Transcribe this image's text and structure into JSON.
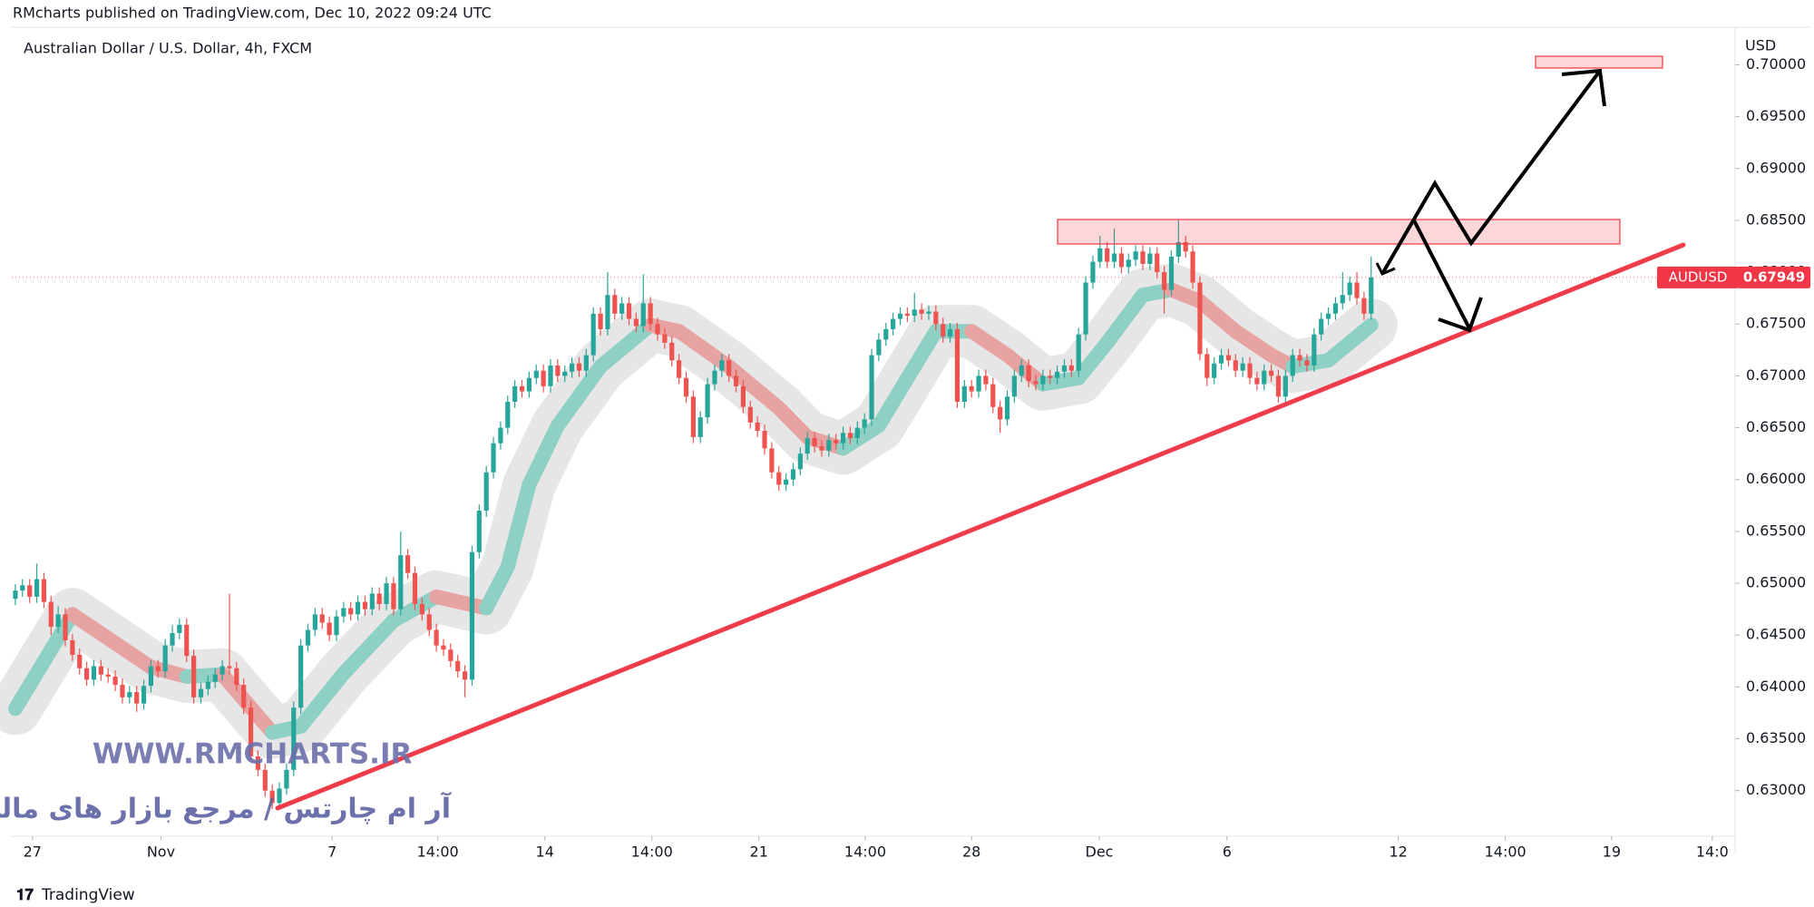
{
  "header": "RMcharts published on TradingView.com, Dec 10, 2022 09:24 UTC",
  "footer": "TradingView",
  "chart_data": {
    "type": "candlestick",
    "title": "Australian Dollar / U.S. Dollar, 4h, FXCM",
    "currency": "USD",
    "symbol": "AUDUSD",
    "watermark": "WWW.RMCHARTS.IR",
    "watermark_fa": "آر ام چارتس / مرجع بازار های مالی",
    "up_color": "#26a69a",
    "down_color": "#ef5350",
    "ribbon_up_color": "#8fd0c4",
    "ribbon_down_color": "#e7a2a2",
    "envelope_color": "#e6e6e6",
    "xlim": [
      -0.5,
      241
    ],
    "xticks": [
      {
        "value": 2.4,
        "label": "27"
      },
      {
        "value": 20.4,
        "label": "Nov"
      },
      {
        "value": 44.4,
        "label": "7"
      },
      {
        "value": 59.2,
        "label": "14:00"
      },
      {
        "value": 74.2,
        "label": "14"
      },
      {
        "value": 89.2,
        "label": "14:00"
      },
      {
        "value": 104.2,
        "label": "21"
      },
      {
        "value": 119.1,
        "label": "14:00"
      },
      {
        "value": 134,
        "label": "28"
      },
      {
        "value": 151.9,
        "label": "Dec"
      },
      {
        "value": 169.8,
        "label": "6"
      },
      {
        "value": 193.8,
        "label": "12"
      },
      {
        "value": 208.8,
        "label": "14:00"
      },
      {
        "value": 223.7,
        "label": "19"
      },
      {
        "value": 237.8,
        "label": "14:0"
      }
    ],
    "ylim": [
      0.6256,
      0.7031
    ],
    "yticks": [
      {
        "value": 0.63,
        "label": "0.63000"
      },
      {
        "value": 0.635,
        "label": "0.63500"
      },
      {
        "value": 0.64,
        "label": "0.64000"
      },
      {
        "value": 0.645,
        "label": "0.64500"
      },
      {
        "value": 0.65,
        "label": "0.65000"
      },
      {
        "value": 0.655,
        "label": "0.65500"
      },
      {
        "value": 0.66,
        "label": "0.66000"
      },
      {
        "value": 0.665,
        "label": "0.66500"
      },
      {
        "value": 0.67,
        "label": "0.67000"
      },
      {
        "value": 0.675,
        "label": "0.67500"
      },
      {
        "value": 0.68,
        "label": "0.68000"
      },
      {
        "value": 0.685,
        "label": "0.68500"
      },
      {
        "value": 0.69,
        "label": "0.69000"
      },
      {
        "value": 0.695,
        "label": "0.69500"
      },
      {
        "value": 0.7,
        "label": "0.70000"
      }
    ],
    "ohlc": [
      [
        0.6485,
        0.6499,
        0.6479,
        0.6493
      ],
      [
        0.6493,
        0.6504,
        0.6487,
        0.6498
      ],
      [
        0.6498,
        0.6504,
        0.6481,
        0.6487
      ],
      [
        0.6487,
        0.6519,
        0.6481,
        0.6504
      ],
      [
        0.6504,
        0.651,
        0.6476,
        0.6482
      ],
      [
        0.6482,
        0.6488,
        0.645,
        0.6458
      ],
      [
        0.6458,
        0.6478,
        0.6452,
        0.647
      ],
      [
        0.647,
        0.6476,
        0.6439,
        0.6445
      ],
      [
        0.6445,
        0.6451,
        0.6425,
        0.6431
      ],
      [
        0.6431,
        0.6437,
        0.6412,
        0.6418
      ],
      [
        0.6418,
        0.6424,
        0.6401,
        0.6407
      ],
      [
        0.6407,
        0.6426,
        0.6401,
        0.642
      ],
      [
        0.642,
        0.6426,
        0.6406,
        0.6412
      ],
      [
        0.6412,
        0.6418,
        0.6404,
        0.641
      ],
      [
        0.641,
        0.6416,
        0.6396,
        0.6402
      ],
      [
        0.6402,
        0.6408,
        0.6384,
        0.639
      ],
      [
        0.639,
        0.6401,
        0.6384,
        0.6395
      ],
      [
        0.6395,
        0.6401,
        0.6376,
        0.6384
      ],
      [
        0.6384,
        0.6407,
        0.6378,
        0.6401
      ],
      [
        0.6401,
        0.6426,
        0.6395,
        0.642
      ],
      [
        0.642,
        0.6426,
        0.6409,
        0.6415
      ],
      [
        0.6415,
        0.6446,
        0.6409,
        0.644
      ],
      [
        0.644,
        0.646,
        0.6434,
        0.6452
      ],
      [
        0.6452,
        0.6466,
        0.6446,
        0.646
      ],
      [
        0.646,
        0.6466,
        0.6424,
        0.643
      ],
      [
        0.643,
        0.6436,
        0.6384,
        0.639
      ],
      [
        0.639,
        0.6404,
        0.6384,
        0.6398
      ],
      [
        0.6398,
        0.6411,
        0.6392,
        0.6405
      ],
      [
        0.6405,
        0.6418,
        0.6399,
        0.6412
      ],
      [
        0.6412,
        0.6426,
        0.6406,
        0.642
      ],
      [
        0.642,
        0.649,
        0.6412,
        0.6418
      ],
      [
        0.6418,
        0.6424,
        0.6396,
        0.6402
      ],
      [
        0.6402,
        0.6408,
        0.6374,
        0.638
      ],
      [
        0.638,
        0.6386,
        0.6327,
        0.6333
      ],
      [
        0.6333,
        0.6339,
        0.6314,
        0.632
      ],
      [
        0.632,
        0.6326,
        0.6294,
        0.63
      ],
      [
        0.63,
        0.6306,
        0.6282,
        0.6288
      ],
      [
        0.6288,
        0.6308,
        0.6282,
        0.6302
      ],
      [
        0.6302,
        0.6326,
        0.6296,
        0.632
      ],
      [
        0.632,
        0.6386,
        0.6314,
        0.638
      ],
      [
        0.638,
        0.6446,
        0.6374,
        0.644
      ],
      [
        0.644,
        0.6461,
        0.6434,
        0.6455
      ],
      [
        0.6455,
        0.6476,
        0.6449,
        0.647
      ],
      [
        0.647,
        0.6476,
        0.6456,
        0.6462
      ],
      [
        0.6462,
        0.6468,
        0.6444,
        0.645
      ],
      [
        0.645,
        0.6474,
        0.6444,
        0.6468
      ],
      [
        0.6468,
        0.6482,
        0.6462,
        0.6476
      ],
      [
        0.6476,
        0.6482,
        0.6464,
        0.647
      ],
      [
        0.647,
        0.6488,
        0.6464,
        0.6482
      ],
      [
        0.6482,
        0.6488,
        0.6469,
        0.6475
      ],
      [
        0.6475,
        0.6496,
        0.6469,
        0.649
      ],
      [
        0.649,
        0.6496,
        0.6474,
        0.648
      ],
      [
        0.648,
        0.6506,
        0.6474,
        0.65
      ],
      [
        0.65,
        0.6506,
        0.6469,
        0.6475
      ],
      [
        0.6475,
        0.655,
        0.6469,
        0.6527
      ],
      [
        0.6527,
        0.6533,
        0.6504,
        0.651
      ],
      [
        0.651,
        0.6516,
        0.6474,
        0.648
      ],
      [
        0.648,
        0.6486,
        0.6464,
        0.647
      ],
      [
        0.647,
        0.6476,
        0.6449,
        0.6455
      ],
      [
        0.6455,
        0.6461,
        0.6434,
        0.644
      ],
      [
        0.644,
        0.6446,
        0.643,
        0.6436
      ],
      [
        0.6436,
        0.6442,
        0.6419,
        0.6425
      ],
      [
        0.6425,
        0.6431,
        0.6409,
        0.6415
      ],
      [
        0.6415,
        0.6421,
        0.639,
        0.6407
      ],
      [
        0.6407,
        0.6536,
        0.6401,
        0.653
      ],
      [
        0.653,
        0.6576,
        0.6524,
        0.657
      ],
      [
        0.657,
        0.6613,
        0.6564,
        0.6607
      ],
      [
        0.6607,
        0.6641,
        0.6601,
        0.6635
      ],
      [
        0.6635,
        0.6656,
        0.6629,
        0.665
      ],
      [
        0.665,
        0.6681,
        0.6644,
        0.6675
      ],
      [
        0.6675,
        0.6696,
        0.6669,
        0.669
      ],
      [
        0.669,
        0.6696,
        0.6679,
        0.6685
      ],
      [
        0.6685,
        0.6704,
        0.6679,
        0.6698
      ],
      [
        0.6698,
        0.6711,
        0.6692,
        0.6705
      ],
      [
        0.6705,
        0.6711,
        0.6684,
        0.669
      ],
      [
        0.669,
        0.6716,
        0.6684,
        0.671
      ],
      [
        0.671,
        0.6716,
        0.6694,
        0.67
      ],
      [
        0.67,
        0.671,
        0.6694,
        0.6704
      ],
      [
        0.6704,
        0.6718,
        0.6698,
        0.6712
      ],
      [
        0.6712,
        0.6718,
        0.6699,
        0.6705
      ],
      [
        0.6705,
        0.6726,
        0.6699,
        0.672
      ],
      [
        0.672,
        0.6766,
        0.6714,
        0.676
      ],
      [
        0.676,
        0.6766,
        0.6739,
        0.6745
      ],
      [
        0.6745,
        0.68,
        0.6739,
        0.6778
      ],
      [
        0.6778,
        0.6784,
        0.6754,
        0.676
      ],
      [
        0.676,
        0.6776,
        0.6754,
        0.677
      ],
      [
        0.677,
        0.6776,
        0.6749,
        0.6755
      ],
      [
        0.6755,
        0.6761,
        0.6742,
        0.6748
      ],
      [
        0.6748,
        0.6798,
        0.6742,
        0.677
      ],
      [
        0.677,
        0.6776,
        0.6744,
        0.675
      ],
      [
        0.675,
        0.6756,
        0.6734,
        0.674
      ],
      [
        0.674,
        0.6746,
        0.6726,
        0.6732
      ],
      [
        0.6732,
        0.6738,
        0.6709,
        0.6715
      ],
      [
        0.6715,
        0.6721,
        0.6692,
        0.6698
      ],
      [
        0.6698,
        0.6704,
        0.6674,
        0.668
      ],
      [
        0.668,
        0.6686,
        0.6635,
        0.6641
      ],
      [
        0.6641,
        0.6666,
        0.6635,
        0.666
      ],
      [
        0.666,
        0.6698,
        0.6654,
        0.6692
      ],
      [
        0.6692,
        0.6711,
        0.6686,
        0.6705
      ],
      [
        0.6705,
        0.6721,
        0.6699,
        0.6715
      ],
      [
        0.6715,
        0.6721,
        0.6694,
        0.67
      ],
      [
        0.67,
        0.6706,
        0.6684,
        0.669
      ],
      [
        0.669,
        0.6696,
        0.6664,
        0.667
      ],
      [
        0.667,
        0.6676,
        0.6649,
        0.6655
      ],
      [
        0.6655,
        0.6661,
        0.6641,
        0.6647
      ],
      [
        0.6647,
        0.6653,
        0.6624,
        0.663
      ],
      [
        0.663,
        0.6636,
        0.6601,
        0.6607
      ],
      [
        0.6607,
        0.6613,
        0.6589,
        0.6595
      ],
      [
        0.6595,
        0.6606,
        0.6589,
        0.66
      ],
      [
        0.66,
        0.6616,
        0.6594,
        0.661
      ],
      [
        0.661,
        0.6631,
        0.6604,
        0.6625
      ],
      [
        0.6625,
        0.6646,
        0.6619,
        0.664
      ],
      [
        0.664,
        0.6646,
        0.6626,
        0.6632
      ],
      [
        0.6632,
        0.6638,
        0.6622,
        0.6628
      ],
      [
        0.6628,
        0.6644,
        0.6622,
        0.6638
      ],
      [
        0.6638,
        0.6644,
        0.6629,
        0.6635
      ],
      [
        0.6635,
        0.6651,
        0.6629,
        0.6645
      ],
      [
        0.6645,
        0.6651,
        0.6634,
        0.664
      ],
      [
        0.664,
        0.6656,
        0.6634,
        0.665
      ],
      [
        0.665,
        0.6664,
        0.6644,
        0.6658
      ],
      [
        0.6658,
        0.6726,
        0.6652,
        0.672
      ],
      [
        0.672,
        0.6741,
        0.6714,
        0.6735
      ],
      [
        0.6735,
        0.6751,
        0.6729,
        0.6745
      ],
      [
        0.6745,
        0.6761,
        0.6739,
        0.6755
      ],
      [
        0.6755,
        0.6766,
        0.6749,
        0.676
      ],
      [
        0.676,
        0.6766,
        0.6752,
        0.6758
      ],
      [
        0.6758,
        0.678,
        0.6752,
        0.6764
      ],
      [
        0.6764,
        0.677,
        0.6754,
        0.676
      ],
      [
        0.676,
        0.6768,
        0.6754,
        0.6762
      ],
      [
        0.6762,
        0.6768,
        0.6744,
        0.675
      ],
      [
        0.675,
        0.6756,
        0.6732,
        0.6738
      ],
      [
        0.6738,
        0.6751,
        0.6732,
        0.6745
      ],
      [
        0.6745,
        0.6751,
        0.6669,
        0.6675
      ],
      [
        0.6675,
        0.6696,
        0.6669,
        0.669
      ],
      [
        0.669,
        0.6696,
        0.6679,
        0.6685
      ],
      [
        0.6685,
        0.6706,
        0.6679,
        0.67
      ],
      [
        0.67,
        0.6706,
        0.6686,
        0.6692
      ],
      [
        0.6692,
        0.6698,
        0.6664,
        0.667
      ],
      [
        0.667,
        0.6676,
        0.6645,
        0.6658
      ],
      [
        0.6658,
        0.6686,
        0.6652,
        0.668
      ],
      [
        0.668,
        0.6706,
        0.6674,
        0.67
      ],
      [
        0.67,
        0.6716,
        0.6694,
        0.671
      ],
      [
        0.671,
        0.6716,
        0.6689,
        0.6695
      ],
      [
        0.6695,
        0.6701,
        0.6686,
        0.6692
      ],
      [
        0.6692,
        0.6706,
        0.6686,
        0.67
      ],
      [
        0.67,
        0.6706,
        0.6692,
        0.6698
      ],
      [
        0.6698,
        0.671,
        0.6692,
        0.6704
      ],
      [
        0.6704,
        0.6716,
        0.6698,
        0.671
      ],
      [
        0.671,
        0.6716,
        0.6699,
        0.6705
      ],
      [
        0.6705,
        0.6746,
        0.6699,
        0.674
      ],
      [
        0.674,
        0.6796,
        0.6734,
        0.679
      ],
      [
        0.679,
        0.6816,
        0.6784,
        0.681
      ],
      [
        0.681,
        0.6835,
        0.6804,
        0.6823
      ],
      [
        0.6823,
        0.6829,
        0.6804,
        0.681
      ],
      [
        0.681,
        0.6842,
        0.6804,
        0.6818
      ],
      [
        0.6818,
        0.6824,
        0.6799,
        0.6805
      ],
      [
        0.6805,
        0.6818,
        0.6799,
        0.6812
      ],
      [
        0.6812,
        0.6826,
        0.6806,
        0.682
      ],
      [
        0.682,
        0.6826,
        0.6802,
        0.6808
      ],
      [
        0.6808,
        0.6824,
        0.6802,
        0.6818
      ],
      [
        0.6818,
        0.6824,
        0.6794,
        0.68
      ],
      [
        0.68,
        0.6806,
        0.676,
        0.6783
      ],
      [
        0.6783,
        0.6821,
        0.6777,
        0.6815
      ],
      [
        0.6815,
        0.685,
        0.6809,
        0.6829
      ],
      [
        0.6829,
        0.6835,
        0.6814,
        0.682
      ],
      [
        0.682,
        0.6826,
        0.6784,
        0.679
      ],
      [
        0.679,
        0.6796,
        0.6715,
        0.6721
      ],
      [
        0.6721,
        0.6727,
        0.669,
        0.6698
      ],
      [
        0.6698,
        0.6718,
        0.6692,
        0.6712
      ],
      [
        0.6712,
        0.6726,
        0.6706,
        0.672
      ],
      [
        0.672,
        0.6726,
        0.6709,
        0.6715
      ],
      [
        0.6715,
        0.6721,
        0.6699,
        0.6705
      ],
      [
        0.6705,
        0.6718,
        0.6699,
        0.6712
      ],
      [
        0.6712,
        0.6718,
        0.6692,
        0.6698
      ],
      [
        0.6698,
        0.6704,
        0.6686,
        0.6692
      ],
      [
        0.6692,
        0.6711,
        0.6686,
        0.6705
      ],
      [
        0.6705,
        0.6711,
        0.6694,
        0.67
      ],
      [
        0.67,
        0.6706,
        0.6674,
        0.668
      ],
      [
        0.668,
        0.6706,
        0.6674,
        0.67
      ],
      [
        0.67,
        0.6726,
        0.6694,
        0.672
      ],
      [
        0.672,
        0.6726,
        0.6709,
        0.6715
      ],
      [
        0.6715,
        0.6721,
        0.6704,
        0.671
      ],
      [
        0.671,
        0.6746,
        0.6704,
        0.674
      ],
      [
        0.674,
        0.6761,
        0.6734,
        0.6755
      ],
      [
        0.6755,
        0.6766,
        0.6749,
        0.676
      ],
      [
        0.676,
        0.6776,
        0.6754,
        0.677
      ],
      [
        0.677,
        0.68,
        0.6764,
        0.6778
      ],
      [
        0.6778,
        0.6796,
        0.6772,
        0.679
      ],
      [
        0.679,
        0.68,
        0.6769,
        0.6775
      ],
      [
        0.6775,
        0.6781,
        0.6754,
        0.676
      ],
      [
        0.676,
        0.6815,
        0.6754,
        0.67949
      ]
    ],
    "ribbon": {
      "x": [
        0,
        8,
        19,
        24,
        29,
        36,
        40,
        46,
        53,
        59,
        66,
        69,
        72,
        76,
        82,
        89,
        93,
        100,
        107,
        111,
        116,
        121,
        126,
        129,
        134,
        139,
        144,
        149,
        153,
        158,
        162,
        166,
        171,
        176,
        179,
        184,
        190
      ],
      "values": [
        0.6379,
        0.647,
        0.6419,
        0.641,
        0.6412,
        0.6356,
        0.6362,
        0.6413,
        0.6464,
        0.6487,
        0.6476,
        0.6516,
        0.6595,
        0.6652,
        0.6709,
        0.6749,
        0.6743,
        0.6709,
        0.6669,
        0.6641,
        0.663,
        0.6652,
        0.6709,
        0.6743,
        0.6743,
        0.672,
        0.6692,
        0.6698,
        0.6732,
        0.6778,
        0.6783,
        0.6772,
        0.6743,
        0.672,
        0.6709,
        0.6715,
        0.6749
      ]
    }
  }
}
